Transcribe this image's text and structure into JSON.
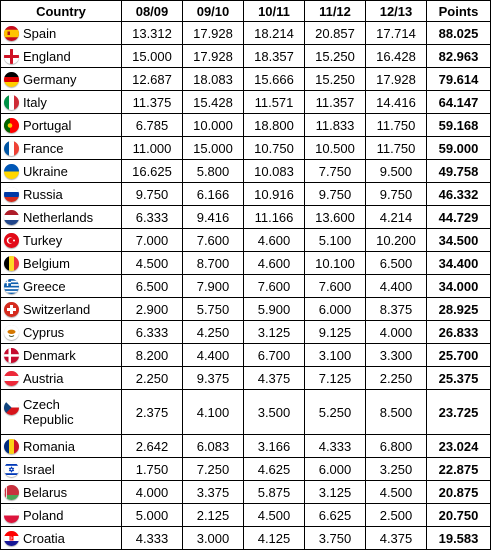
{
  "headers": [
    "Country",
    "08/09",
    "09/10",
    "10/11",
    "11/12",
    "12/13",
    "Points"
  ],
  "rows": [
    {
      "country": "Spain",
      "flag": "spain-flag-icon",
      "values": [
        "13.312",
        "17.928",
        "18.214",
        "20.857",
        "17.714"
      ],
      "points": "88.025"
    },
    {
      "country": "England",
      "flag": "england-flag-icon",
      "values": [
        "15.000",
        "17.928",
        "18.357",
        "15.250",
        "16.428"
      ],
      "points": "82.963"
    },
    {
      "country": "Germany",
      "flag": "germany-flag-icon",
      "values": [
        "12.687",
        "18.083",
        "15.666",
        "15.250",
        "17.928"
      ],
      "points": "79.614"
    },
    {
      "country": "Italy",
      "flag": "italy-flag-icon",
      "values": [
        "11.375",
        "15.428",
        "11.571",
        "11.357",
        "14.416"
      ],
      "points": "64.147"
    },
    {
      "country": "Portugal",
      "flag": "portugal-flag-icon",
      "values": [
        "6.785",
        "10.000",
        "18.800",
        "11.833",
        "11.750"
      ],
      "points": "59.168"
    },
    {
      "country": "France",
      "flag": "france-flag-icon",
      "values": [
        "11.000",
        "15.000",
        "10.750",
        "10.500",
        "11.750"
      ],
      "points": "59.000"
    },
    {
      "country": "Ukraine",
      "flag": "ukraine-flag-icon",
      "values": [
        "16.625",
        "5.800",
        "10.083",
        "7.750",
        "9.500"
      ],
      "points": "49.758"
    },
    {
      "country": "Russia",
      "flag": "russia-flag-icon",
      "values": [
        "9.750",
        "6.166",
        "10.916",
        "9.750",
        "9.750"
      ],
      "points": "46.332"
    },
    {
      "country": "Netherlands",
      "flag": "netherlands-flag-icon",
      "values": [
        "6.333",
        "9.416",
        "11.166",
        "13.600",
        "4.214"
      ],
      "points": "44.729"
    },
    {
      "country": "Turkey",
      "flag": "turkey-flag-icon",
      "values": [
        "7.000",
        "7.600",
        "4.600",
        "5.100",
        "10.200"
      ],
      "points": "34.500"
    },
    {
      "country": "Belgium",
      "flag": "belgium-flag-icon",
      "values": [
        "4.500",
        "8.700",
        "4.600",
        "10.100",
        "6.500"
      ],
      "points": "34.400"
    },
    {
      "country": "Greece",
      "flag": "greece-flag-icon",
      "values": [
        "6.500",
        "7.900",
        "7.600",
        "7.600",
        "4.400"
      ],
      "points": "34.000"
    },
    {
      "country": "Switzerland",
      "flag": "switzerland-flag-icon",
      "values": [
        "2.900",
        "5.750",
        "5.900",
        "6.000",
        "8.375"
      ],
      "points": "28.925"
    },
    {
      "country": "Cyprus",
      "flag": "cyprus-flag-icon",
      "values": [
        "6.333",
        "4.250",
        "3.125",
        "9.125",
        "4.000"
      ],
      "points": "26.833"
    },
    {
      "country": "Denmark",
      "flag": "denmark-flag-icon",
      "values": [
        "8.200",
        "4.400",
        "6.700",
        "3.100",
        "3.300"
      ],
      "points": "25.700"
    },
    {
      "country": "Austria",
      "flag": "austria-flag-icon",
      "values": [
        "2.250",
        "9.375",
        "4.375",
        "7.125",
        "2.250"
      ],
      "points": "25.375"
    },
    {
      "country": "Czech Republic",
      "flag": "czech-republic-flag-icon",
      "values": [
        "2.375",
        "4.100",
        "3.500",
        "5.250",
        "8.500"
      ],
      "points": "23.725"
    },
    {
      "country": "Romania",
      "flag": "romania-flag-icon",
      "values": [
        "2.642",
        "6.083",
        "3.166",
        "4.333",
        "6.800"
      ],
      "points": "23.024"
    },
    {
      "country": "Israel",
      "flag": "israel-flag-icon",
      "values": [
        "1.750",
        "7.250",
        "4.625",
        "6.000",
        "3.250"
      ],
      "points": "22.875"
    },
    {
      "country": "Belarus",
      "flag": "belarus-flag-icon",
      "values": [
        "4.000",
        "3.375",
        "5.875",
        "3.125",
        "4.500"
      ],
      "points": "20.875"
    },
    {
      "country": "Poland",
      "flag": "poland-flag-icon",
      "values": [
        "5.000",
        "2.125",
        "4.500",
        "6.625",
        "2.500"
      ],
      "points": "20.750"
    },
    {
      "country": "Croatia",
      "flag": "croatia-flag-icon",
      "values": [
        "4.333",
        "3.000",
        "4.125",
        "3.750",
        "4.375"
      ],
      "points": "19.583"
    }
  ]
}
